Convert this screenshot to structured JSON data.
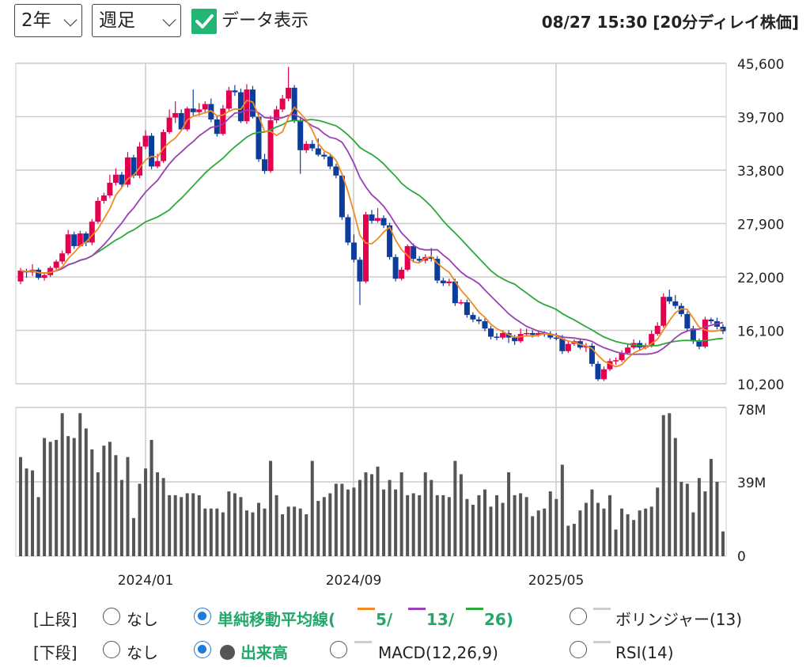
{
  "controls": {
    "period": "2年",
    "interval": "週足",
    "data_display_label": "データ表示",
    "timestamp": "08/27 15:30 [20分ディレイ株価]"
  },
  "legend": {
    "upper_label": "[上段]",
    "lower_label": "[下段]",
    "none_label": "なし",
    "sma_label": "単純移動平均線(",
    "sma_5": "5/",
    "sma_13": "13/",
    "sma_26": "26)",
    "bollinger_label": "ボリンジャー(13)",
    "volume_label": "出来高",
    "macd_label": "MACD(12,26,9)",
    "rsi_label": "RSI(14)"
  },
  "colors": {
    "up": "#e4004f",
    "down": "#0c3c9c",
    "ma5": "#f08a24",
    "ma13": "#9b3fb5",
    "ma26": "#2ea83a",
    "volume": "#555555"
  },
  "chart_data": [
    {
      "type": "candlestick",
      "y_ticks": [
        "45,600",
        "39,700",
        "33,800",
        "27,900",
        "22,000",
        "16,100",
        "10,200"
      ],
      "y_tick_values": [
        45600,
        39700,
        33800,
        27900,
        22000,
        16100,
        10200
      ],
      "ylim": [
        10200,
        45600
      ],
      "x_ticks": [
        "2024/01",
        "2024/09",
        "2025/05"
      ],
      "grid": true,
      "series": [
        {
          "name": "5",
          "kind": "sma",
          "period": 5
        },
        {
          "name": "13",
          "kind": "sma",
          "period": 13
        },
        {
          "name": "26",
          "kind": "sma",
          "period": 26
        }
      ],
      "candles": [
        [
          21500,
          22700,
          21200,
          23000
        ],
        [
          22700,
          22500,
          21900,
          22900
        ],
        [
          22500,
          22800,
          22100,
          23400
        ],
        [
          22800,
          21900,
          21700,
          23000
        ],
        [
          21900,
          22200,
          21600,
          22500
        ],
        [
          22200,
          23000,
          22000,
          23200
        ],
        [
          23000,
          23700,
          22800,
          23900
        ],
        [
          23700,
          24600,
          23400,
          24900
        ],
        [
          24600,
          26700,
          24400,
          27200
        ],
        [
          26700,
          25400,
          25100,
          27000
        ],
        [
          25400,
          26800,
          25300,
          27100
        ],
        [
          26800,
          25800,
          25400,
          27000
        ],
        [
          25800,
          28100,
          25500,
          28400
        ],
        [
          28100,
          30400,
          27900,
          30800
        ],
        [
          30400,
          31000,
          30100,
          31300
        ],
        [
          31000,
          32400,
          30700,
          33300
        ],
        [
          32400,
          33300,
          32100,
          34000
        ],
        [
          33300,
          32200,
          31900,
          33600
        ],
        [
          32200,
          35200,
          31900,
          35800
        ],
        [
          35200,
          33200,
          32900,
          35500
        ],
        [
          33200,
          36400,
          32900,
          36900
        ],
        [
          36400,
          37600,
          36100,
          38200
        ],
        [
          37600,
          34200,
          33900,
          37900
        ],
        [
          34200,
          34800,
          34000,
          35600
        ],
        [
          34800,
          38000,
          34600,
          38300
        ],
        [
          38000,
          39600,
          37800,
          40500
        ],
        [
          39600,
          40100,
          39000,
          41400
        ],
        [
          40100,
          38300,
          38100,
          40500
        ],
        [
          38300,
          40600,
          38100,
          40800
        ],
        [
          40600,
          40200,
          39800,
          42700
        ],
        [
          40200,
          40500,
          39800,
          41200
        ],
        [
          40500,
          41100,
          40200,
          41400
        ],
        [
          41100,
          39400,
          39100,
          41700
        ],
        [
          39400,
          37800,
          37500,
          39800
        ],
        [
          37800,
          40600,
          37600,
          41000
        ],
        [
          40600,
          42600,
          40300,
          43000
        ],
        [
          42600,
          42400,
          42000,
          43200
        ],
        [
          42400,
          39200,
          39000,
          42800
        ],
        [
          39200,
          42700,
          38900,
          43300
        ],
        [
          42700,
          39700,
          39500,
          43100
        ],
        [
          39700,
          35000,
          34700,
          40000
        ],
        [
          35000,
          33700,
          33400,
          35600
        ],
        [
          33700,
          39300,
          33500,
          39800
        ],
        [
          39300,
          40500,
          39000,
          40900
        ],
        [
          40500,
          41700,
          40200,
          42100
        ],
        [
          41700,
          42900,
          41400,
          45200
        ],
        [
          42900,
          39300,
          39000,
          43200
        ],
        [
          39300,
          36000,
          33400,
          39600
        ],
        [
          36000,
          36700,
          35700,
          37000
        ],
        [
          36700,
          36200,
          35900,
          37100
        ],
        [
          36200,
          35500,
          35300,
          37300
        ],
        [
          35500,
          35300,
          35000,
          35800
        ],
        [
          35300,
          34200,
          33900,
          35600
        ],
        [
          34200,
          33200,
          32900,
          34500
        ],
        [
          33200,
          28600,
          28300,
          33500
        ],
        [
          28600,
          25800,
          25500,
          28900
        ],
        [
          25800,
          23900,
          23600,
          26700
        ],
        [
          23900,
          21500,
          18900,
          24200
        ],
        [
          21500,
          28900,
          21300,
          29200
        ],
        [
          28900,
          28200,
          27900,
          29400
        ],
        [
          28200,
          28500,
          28000,
          29600
        ],
        [
          28500,
          27700,
          27400,
          28800
        ],
        [
          27700,
          24200,
          23900,
          28000
        ],
        [
          24200,
          21800,
          21500,
          24500
        ],
        [
          21800,
          22800,
          21600,
          23100
        ],
        [
          22800,
          25400,
          22600,
          25600
        ],
        [
          25400,
          24000,
          23700,
          25700
        ],
        [
          24000,
          23800,
          23500,
          24300
        ],
        [
          23800,
          24200,
          23500,
          24500
        ],
        [
          24200,
          24000,
          23700,
          25200
        ],
        [
          24000,
          21600,
          21300,
          24300
        ],
        [
          21600,
          21300,
          21000,
          21900
        ],
        [
          21300,
          21500,
          21000,
          21800
        ],
        [
          21500,
          19100,
          18800,
          21800
        ],
        [
          19100,
          19200,
          18900,
          19500
        ],
        [
          19200,
          17800,
          17500,
          19500
        ],
        [
          17800,
          17300,
          17000,
          18100
        ],
        [
          17300,
          17100,
          16800,
          17600
        ],
        [
          17100,
          16300,
          16000,
          17400
        ],
        [
          16300,
          15400,
          15100,
          16600
        ],
        [
          15400,
          15300,
          15000,
          15800
        ],
        [
          15300,
          15800,
          15100,
          16100
        ],
        [
          15800,
          15300,
          14700,
          16100
        ],
        [
          15300,
          14900,
          14500,
          15600
        ],
        [
          14900,
          15700,
          14700,
          16300
        ],
        [
          15700,
          15800,
          15500,
          16300
        ],
        [
          15800,
          15600,
          15300,
          16100
        ],
        [
          15600,
          15800,
          15400,
          16000
        ],
        [
          15800,
          15700,
          15400,
          16000
        ],
        [
          15700,
          15300,
          15100,
          16000
        ],
        [
          15300,
          15200,
          15000,
          15800
        ],
        [
          15200,
          13800,
          13500,
          15600
        ],
        [
          13800,
          14600,
          13600,
          14900
        ],
        [
          14600,
          14900,
          14400,
          15100
        ],
        [
          14900,
          14200,
          14000,
          15200
        ],
        [
          14200,
          14400,
          13700,
          14700
        ],
        [
          14400,
          12400,
          12100,
          14700
        ],
        [
          12400,
          10700,
          10500,
          12700
        ],
        [
          10700,
          11800,
          10500,
          12100
        ],
        [
          11800,
          12700,
          11600,
          13000
        ],
        [
          12700,
          12800,
          12300,
          13100
        ],
        [
          12800,
          13600,
          12600,
          13900
        ],
        [
          13600,
          14200,
          13400,
          14600
        ],
        [
          14200,
          14700,
          14000,
          15100
        ],
        [
          14700,
          14200,
          13900,
          15000
        ],
        [
          14200,
          14400,
          14000,
          14700
        ],
        [
          14400,
          15700,
          14200,
          16100
        ],
        [
          15700,
          16600,
          15500,
          17000
        ],
        [
          16600,
          19800,
          16400,
          20200
        ],
        [
          19800,
          19300,
          19000,
          20600
        ],
        [
          19300,
          18800,
          18500,
          20000
        ],
        [
          18800,
          17900,
          17600,
          19100
        ],
        [
          17900,
          16300,
          16000,
          18200
        ],
        [
          16300,
          14900,
          14600,
          16600
        ],
        [
          14900,
          14300,
          14000,
          15200
        ],
        [
          14300,
          17300,
          14100,
          17600
        ],
        [
          17300,
          17100,
          16800,
          17500
        ],
        [
          17100,
          16500,
          16200,
          17500
        ],
        [
          16500,
          16000,
          15700,
          16800
        ]
      ]
    },
    {
      "type": "bar",
      "title": "出来高",
      "y_ticks": [
        "78M",
        "39M",
        "0"
      ],
      "y_tick_values": [
        78,
        39,
        0
      ],
      "ylim": [
        0,
        78
      ],
      "x_ticks": [
        "2024/01",
        "2024/09",
        "2025/05"
      ],
      "values": [
        52,
        46,
        45,
        31,
        62,
        60,
        61,
        75,
        63,
        62,
        75,
        67,
        56,
        44,
        58,
        60,
        53,
        40,
        52,
        20,
        38,
        46,
        61,
        44,
        41,
        32,
        32,
        31,
        33,
        33,
        32,
        25,
        25,
        25,
        23,
        34,
        33,
        31,
        24,
        23,
        28,
        25,
        50,
        32,
        22,
        26,
        26,
        25,
        22,
        50,
        29,
        31,
        33,
        38,
        38,
        35,
        36,
        40,
        44,
        43,
        47,
        35,
        40,
        35,
        44,
        32,
        33,
        32,
        44,
        40,
        32,
        32,
        31,
        50,
        43,
        30,
        27,
        32,
        35,
        26,
        32,
        28,
        44,
        32,
        33,
        31,
        21,
        24,
        25,
        34,
        30,
        48,
        16,
        17,
        24,
        28,
        35,
        28,
        25,
        32,
        14,
        25,
        22,
        19,
        24,
        25,
        26,
        36,
        74,
        75,
        62,
        39,
        38,
        23,
        41,
        34,
        51,
        39,
        13
      ],
      "grid": true
    }
  ]
}
